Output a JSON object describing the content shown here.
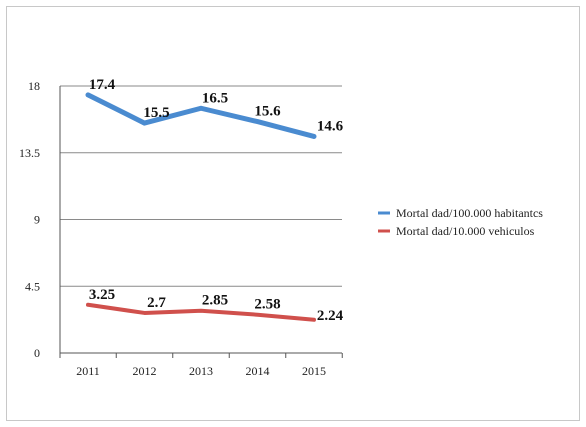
{
  "chart_data": {
    "type": "line",
    "categories": [
      "2011",
      "2012",
      "2013",
      "2014",
      "2015"
    ],
    "ylim": [
      0,
      18
    ],
    "yticks": [
      "0",
      "4.5",
      "9",
      "13.5",
      "18"
    ],
    "grid": true,
    "legend_position": "right",
    "series": [
      {
        "name": "Mortal dad/100.000 habitantcs",
        "color": "#4a8bd0",
        "values": [
          17.4,
          15.5,
          16.5,
          15.6,
          14.6
        ],
        "labels": [
          "17.4",
          "15.5",
          "16.5",
          "15.6",
          "14.6"
        ]
      },
      {
        "name": "Mortal dad/10.000 vehiculos",
        "color": "#d0504c",
        "values": [
          3.25,
          2.7,
          2.85,
          2.58,
          2.24
        ],
        "labels": [
          "3.25",
          "2.7",
          "2.85",
          "2.58",
          "2.24"
        ]
      }
    ]
  }
}
